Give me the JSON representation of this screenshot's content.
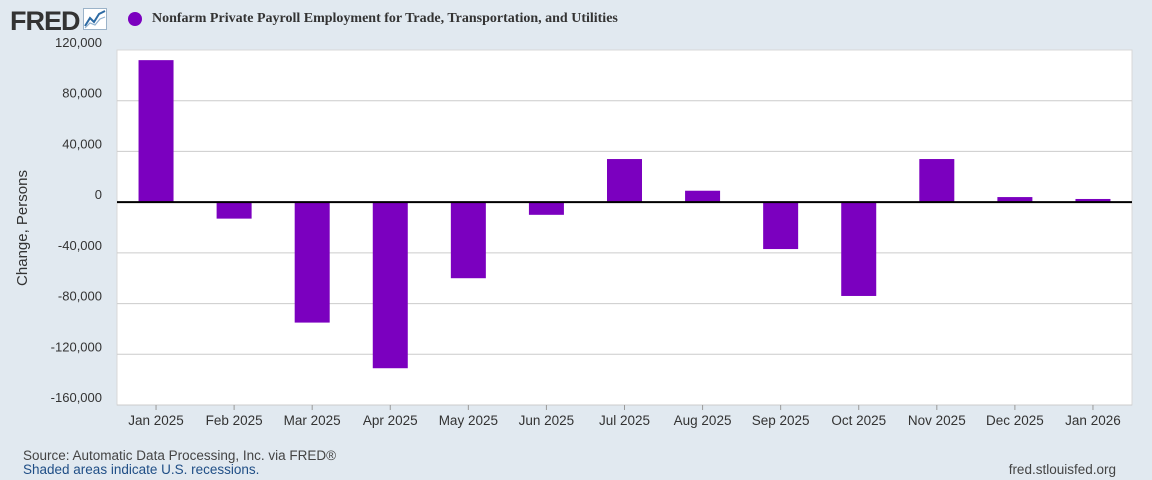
{
  "brand": {
    "logo_text": "FRED",
    "logo_icon": "line-chart-icon"
  },
  "colors": {
    "bar": "#7b00bf",
    "background": "#e1e9f0",
    "plot_background": "#ffffff",
    "gridline": "#cccccc",
    "zero_line": "#000000"
  },
  "legend": {
    "marker_icon": "circle-icon"
  },
  "footer": {
    "source": "Source: Automatic Data Processing, Inc. via FRED®",
    "recession_note": "Shaded areas indicate U.S. recessions.",
    "site": "fred.stlouisfed.org"
  },
  "chart_data": {
    "type": "bar",
    "title": "Nonfarm Private Payroll Employment for Trade, Transportation, and Utilities",
    "xlabel": "",
    "ylabel": "Change, Persons",
    "ylim": [
      -160000,
      120000
    ],
    "yticks": [
      120000,
      80000,
      40000,
      0,
      -40000,
      -80000,
      -120000,
      -160000
    ],
    "ytick_labels": [
      "120,000",
      "80,000",
      "40,000",
      "0",
      "-40,000",
      "-80,000",
      "-120,000",
      "-160,000"
    ],
    "categories": [
      "Jan 2025",
      "Feb 2025",
      "Mar 2025",
      "Apr 2025",
      "May 2025",
      "Jun 2025",
      "Jul 2025",
      "Aug 2025",
      "Sep 2025",
      "Oct 2025",
      "Nov 2025",
      "Dec 2025",
      "Jan 2026"
    ],
    "series": [
      {
        "name": "Nonfarm Private Payroll Employment for Trade, Transportation, and Utilities",
        "values": [
          112000,
          -13000,
          -95000,
          -131000,
          -60000,
          -10000,
          34000,
          9000,
          -37000,
          -74000,
          34000,
          4000,
          2500
        ]
      }
    ],
    "grid": true,
    "legend_position": "top-left"
  }
}
